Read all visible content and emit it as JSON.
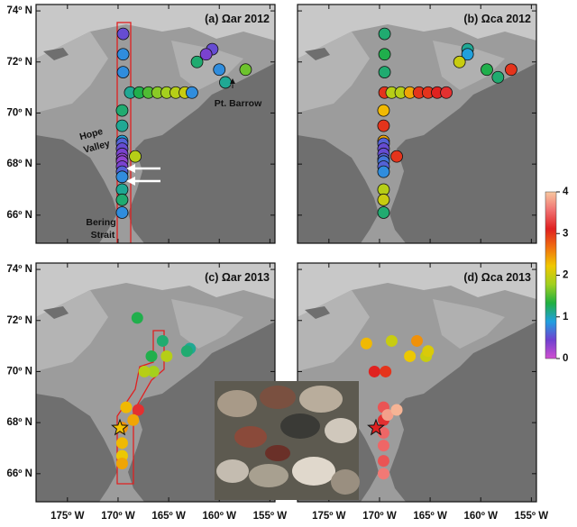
{
  "chart_data": {
    "type": "scatter",
    "xlim": [
      -178.1,
      -154.5
    ],
    "ylim": [
      64.9,
      74.25
    ],
    "xticks": [
      {
        "value": -175,
        "label": "175º W"
      },
      {
        "value": -170,
        "label": "170º W"
      },
      {
        "value": -165,
        "label": "165º W"
      },
      {
        "value": -160,
        "label": "160º W"
      },
      {
        "value": -155,
        "label": "155º W"
      }
    ],
    "yticks": [
      {
        "value": 66,
        "label": "66º N"
      },
      {
        "value": 68,
        "label": "68º N"
      },
      {
        "value": 70,
        "label": "70º N"
      },
      {
        "value": 72,
        "label": "72º N"
      },
      {
        "value": 74,
        "label": "74º N"
      }
    ],
    "clim": [
      0,
      4
    ],
    "cticks": [
      0,
      1,
      2,
      3,
      4
    ],
    "colormap": [
      "#d050d0",
      "#7040d0",
      "#20a0e0",
      "#20b040",
      "#a0d020",
      "#f0c800",
      "#f07010",
      "#e02020",
      "#f07070",
      "#f8c8a0"
    ],
    "annotations": {
      "pt_barrow": "Pt. Barrow",
      "hope_valley": [
        "Hope",
        "Valley"
      ],
      "bering_strait": [
        "Bering",
        "Strait"
      ]
    },
    "panels": [
      {
        "title": "(a) Ωar 2012",
        "points": [
          {
            "lon": -169.5,
            "lat": 73.1,
            "value": 0.5
          },
          {
            "lon": -169.5,
            "lat": 72.3,
            "value": 0.8
          },
          {
            "lon": -169.5,
            "lat": 71.6,
            "value": 0.8
          },
          {
            "lon": -168.8,
            "lat": 70.8,
            "value": 1.1
          },
          {
            "lon": -167.9,
            "lat": 70.8,
            "value": 1.3
          },
          {
            "lon": -167.0,
            "lat": 70.8,
            "value": 1.5
          },
          {
            "lon": -166.1,
            "lat": 70.8,
            "value": 1.7
          },
          {
            "lon": -165.2,
            "lat": 70.8,
            "value": 1.8
          },
          {
            "lon": -164.3,
            "lat": 70.8,
            "value": 1.9
          },
          {
            "lon": -163.4,
            "lat": 70.8,
            "value": 2.0
          },
          {
            "lon": -162.7,
            "lat": 70.8,
            "value": 0.8
          },
          {
            "lon": -169.6,
            "lat": 70.1,
            "value": 1.2
          },
          {
            "lon": -169.6,
            "lat": 69.5,
            "value": 1.1
          },
          {
            "lon": -169.6,
            "lat": 68.9,
            "value": 0.9
          },
          {
            "lon": -169.6,
            "lat": 68.8,
            "value": 0.6
          },
          {
            "lon": -169.6,
            "lat": 68.6,
            "value": 0.5
          },
          {
            "lon": -169.6,
            "lat": 68.4,
            "value": 0.4
          },
          {
            "lon": -169.6,
            "lat": 68.2,
            "value": 0.3
          },
          {
            "lon": -169.6,
            "lat": 68.1,
            "value": 0.3
          },
          {
            "lon": -169.6,
            "lat": 67.9,
            "value": 0.4
          },
          {
            "lon": -169.6,
            "lat": 67.7,
            "value": 0.6
          },
          {
            "lon": -168.3,
            "lat": 68.3,
            "value": 1.9
          },
          {
            "lon": -169.6,
            "lat": 67.5,
            "value": 0.8
          },
          {
            "lon": -169.6,
            "lat": 67.0,
            "value": 1.1
          },
          {
            "lon": -169.6,
            "lat": 66.6,
            "value": 1.2
          },
          {
            "lon": -169.6,
            "lat": 66.1,
            "value": 0.8
          },
          {
            "lon": -160.7,
            "lat": 72.5,
            "value": 0.5
          },
          {
            "lon": -161.3,
            "lat": 72.3,
            "value": 0.4
          },
          {
            "lon": -162.2,
            "lat": 72.0,
            "value": 1.2
          },
          {
            "lon": -160.0,
            "lat": 71.7,
            "value": 0.8
          },
          {
            "lon": -159.4,
            "lat": 71.2,
            "value": 1.1
          },
          {
            "lon": -157.4,
            "lat": 71.7,
            "value": 1.6
          }
        ]
      },
      {
        "title": "(b) Ωca 2012",
        "points": [
          {
            "lon": -169.5,
            "lat": 73.1,
            "value": 1.2
          },
          {
            "lon": -169.5,
            "lat": 72.3,
            "value": 1.3
          },
          {
            "lon": -169.5,
            "lat": 71.6,
            "value": 1.2
          },
          {
            "lon": -169.5,
            "lat": 70.8,
            "value": 3.0
          },
          {
            "lon": -168.8,
            "lat": 70.8,
            "value": 1.9
          },
          {
            "lon": -167.9,
            "lat": 70.8,
            "value": 1.9
          },
          {
            "lon": -167.0,
            "lat": 70.8,
            "value": 2.4
          },
          {
            "lon": -166.1,
            "lat": 70.8,
            "value": 3.0
          },
          {
            "lon": -165.2,
            "lat": 70.8,
            "value": 3.0
          },
          {
            "lon": -164.3,
            "lat": 70.8,
            "value": 3.1
          },
          {
            "lon": -163.4,
            "lat": 70.8,
            "value": 3.2
          },
          {
            "lon": -169.6,
            "lat": 70.1,
            "value": 2.3
          },
          {
            "lon": -169.6,
            "lat": 69.5,
            "value": 3.0
          },
          {
            "lon": -169.6,
            "lat": 68.9,
            "value": 2.4
          },
          {
            "lon": -169.6,
            "lat": 68.8,
            "value": 0.6
          },
          {
            "lon": -169.6,
            "lat": 68.6,
            "value": 0.5
          },
          {
            "lon": -169.6,
            "lat": 68.4,
            "value": 0.5
          },
          {
            "lon": -169.6,
            "lat": 68.2,
            "value": 0.6
          },
          {
            "lon": -169.6,
            "lat": 68.1,
            "value": 0.7
          },
          {
            "lon": -169.6,
            "lat": 67.9,
            "value": 0.6
          },
          {
            "lon": -169.6,
            "lat": 67.7,
            "value": 0.8
          },
          {
            "lon": -168.3,
            "lat": 68.3,
            "value": 3.0
          },
          {
            "lon": -169.6,
            "lat": 67.0,
            "value": 1.9
          },
          {
            "lon": -169.6,
            "lat": 66.6,
            "value": 2.0
          },
          {
            "lon": -169.6,
            "lat": 66.1,
            "value": 1.2
          },
          {
            "lon": -161.3,
            "lat": 72.5,
            "value": 1.1
          },
          {
            "lon": -161.3,
            "lat": 72.3,
            "value": 0.9
          },
          {
            "lon": -162.1,
            "lat": 72.0,
            "value": 2.0
          },
          {
            "lon": -159.4,
            "lat": 71.7,
            "value": 1.3
          },
          {
            "lon": -158.3,
            "lat": 71.4,
            "value": 1.2
          },
          {
            "lon": -157.0,
            "lat": 71.7,
            "value": 3.0
          }
        ]
      },
      {
        "title": "(c) Ωar 2013",
        "points": [
          {
            "lon": -168.1,
            "lat": 72.1,
            "value": 1.3
          },
          {
            "lon": -165.6,
            "lat": 71.2,
            "value": 1.2
          },
          {
            "lon": -166.7,
            "lat": 70.6,
            "value": 1.3
          },
          {
            "lon": -165.2,
            "lat": 70.6,
            "value": 1.9
          },
          {
            "lon": -162.9,
            "lat": 70.9,
            "value": 1.1
          },
          {
            "lon": -163.2,
            "lat": 70.8,
            "value": 1.2
          },
          {
            "lon": -166.5,
            "lat": 70.0,
            "value": 1.8
          },
          {
            "lon": -167.4,
            "lat": 70.0,
            "value": 1.9
          },
          {
            "lon": -169.2,
            "lat": 68.6,
            "value": 2.3
          },
          {
            "lon": -168.0,
            "lat": 68.5,
            "value": 3.2
          },
          {
            "lon": -168.5,
            "lat": 68.1,
            "value": 2.4
          },
          {
            "lon": -169.6,
            "lat": 67.8,
            "value": 2.5
          },
          {
            "lon": -169.6,
            "lat": 67.2,
            "value": 2.3
          },
          {
            "lon": -169.6,
            "lat": 66.7,
            "value": 2.2
          },
          {
            "lon": -169.6,
            "lat": 66.4,
            "value": 2.4
          }
        ]
      },
      {
        "title": "(d) Ωca 2013",
        "points": [
          {
            "lon": -171.3,
            "lat": 71.1,
            "value": 2.3
          },
          {
            "lon": -168.8,
            "lat": 71.2,
            "value": 2.0
          },
          {
            "lon": -166.3,
            "lat": 71.2,
            "value": 2.5
          },
          {
            "lon": -170.5,
            "lat": 70.0,
            "value": 3.1
          },
          {
            "lon": -169.4,
            "lat": 70.0,
            "value": 3.0
          },
          {
            "lon": -167.0,
            "lat": 70.6,
            "value": 2.2
          },
          {
            "lon": -165.4,
            "lat": 70.6,
            "value": 2.0
          },
          {
            "lon": -165.2,
            "lat": 70.8,
            "value": 2.1
          },
          {
            "lon": -169.6,
            "lat": 68.6,
            "value": 3.4
          },
          {
            "lon": -169.6,
            "lat": 68.1,
            "value": 3.2
          },
          {
            "lon": -169.2,
            "lat": 68.3,
            "value": 3.8
          },
          {
            "lon": -168.3,
            "lat": 68.5,
            "value": 3.9
          },
          {
            "lon": -169.6,
            "lat": 67.6,
            "value": 3.5
          },
          {
            "lon": -169.6,
            "lat": 67.1,
            "value": 3.5
          },
          {
            "lon": -169.6,
            "lat": 66.5,
            "value": 3.4
          },
          {
            "lon": -169.6,
            "lat": 66.0,
            "value": 3.6
          }
        ]
      }
    ]
  }
}
